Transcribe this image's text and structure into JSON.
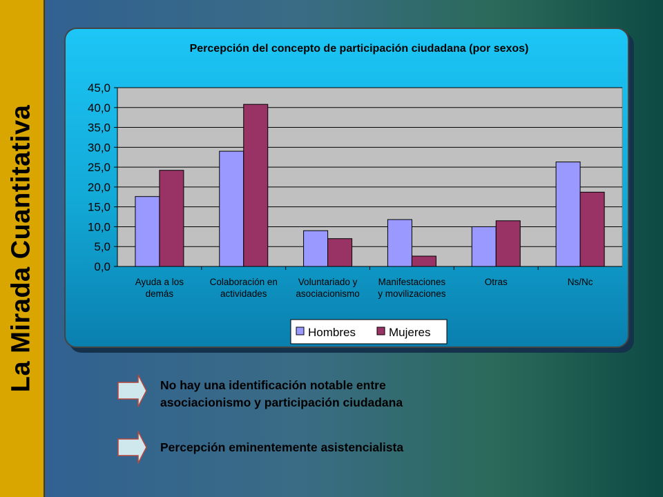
{
  "sidebar": {
    "title": "La Mirada Cuantitativa"
  },
  "bullets": [
    {
      "text": "No hay una identificación notable entre\nasociacionismo y participación ciudadana"
    },
    {
      "text": "Percepción eminentemente asistencialista"
    }
  ],
  "colors": {
    "hombres": "#9999ff",
    "mujeres": "#993366",
    "plot_bg": "#c0c0c0",
    "sidebar": "#d9a600",
    "arrow": "#cfe8ee"
  },
  "chart_data": {
    "type": "bar",
    "title": "Percepción del concepto de participación ciudadana (por sexos)",
    "categories": [
      [
        "Ayuda a los",
        "demás"
      ],
      [
        "Colaboración en",
        "actividades"
      ],
      [
        "Voluntariado y",
        "asociacionismo"
      ],
      [
        "Manifestaciones",
        "y movilizaciones"
      ],
      [
        "Otras"
      ],
      [
        "Ns/Nc"
      ]
    ],
    "series": [
      {
        "name": "Hombres",
        "values": [
          17.6,
          29.0,
          9.0,
          11.8,
          10.0,
          26.3
        ]
      },
      {
        "name": "Mujeres",
        "values": [
          24.2,
          40.8,
          7.0,
          2.6,
          11.5,
          18.7
        ]
      }
    ],
    "ylim": [
      0,
      45
    ],
    "yticks": [
      "0,0",
      "5,0",
      "10,0",
      "15,0",
      "20,0",
      "25,0",
      "30,0",
      "35,0",
      "40,0",
      "45,0"
    ],
    "grid": true,
    "legend": "bottom"
  }
}
